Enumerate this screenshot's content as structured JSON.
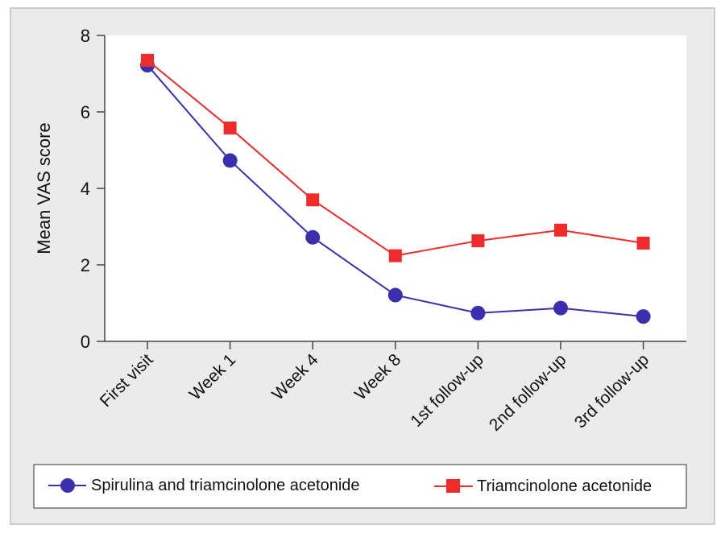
{
  "chart_data": {
    "type": "line",
    "title": "",
    "xlabel": "",
    "ylabel": "Mean VAS score",
    "categories": [
      "First visit",
      "Week 1",
      "Week 4",
      "Week 8",
      "1st follow-up",
      "2nd follow-up",
      "3rd follow-up"
    ],
    "ylim": [
      0,
      8
    ],
    "yticks": [
      0,
      2,
      4,
      6,
      8
    ],
    "series": [
      {
        "name": "Spirulina and triamcinolone acetonide",
        "marker": "circle",
        "color": "#3b2fb0",
        "values": [
          7.22,
          4.73,
          2.72,
          1.21,
          0.74,
          0.87,
          0.65
        ]
      },
      {
        "name": "Triamcinolone acetonide",
        "marker": "square",
        "color": "#ef2b2b",
        "values": [
          7.35,
          5.58,
          3.7,
          2.24,
          2.63,
          2.91,
          2.57
        ]
      }
    ],
    "legend_position": "bottom",
    "grid": false
  },
  "colors": {
    "frame_bg": "#ebebeb",
    "plot_bg": "#ffffff",
    "axis": "#444444"
  }
}
